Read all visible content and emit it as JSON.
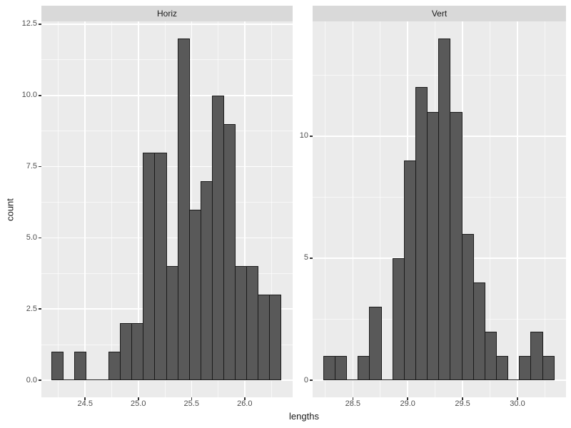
{
  "figure": {
    "x_title": "lengths",
    "y_title": "count"
  },
  "colors": {
    "panel_background": "#ebebeb",
    "strip_background": "#d9d9d9",
    "gridline": "#ffffff",
    "bar_fill": "#595959",
    "bar_stroke": "#1a1a1a",
    "axis_text": "#4d4d4d",
    "title_text": "#1a1a1a",
    "tick_mark": "#333333"
  },
  "chart_data": [
    {
      "type": "bar",
      "subtype": "histogram",
      "title": "Horiz",
      "xlabel": "lengths",
      "ylabel": "count",
      "bin_start": 24.18,
      "bin_width": 0.108,
      "counts": [
        1,
        0,
        1,
        0,
        0,
        1,
        2,
        2,
        8,
        8,
        4,
        12,
        6,
        7,
        10,
        9,
        4,
        4,
        3,
        3
      ],
      "x_range": [
        24.089,
        26.451
      ],
      "y_range": [
        -0.6,
        12.6
      ],
      "x_tick_values": [
        24.5,
        25.0,
        25.5,
        26.0
      ],
      "x_tick_labels": [
        "24.5",
        "25.0",
        "25.5",
        "26.0"
      ],
      "y_tick_values": [
        0,
        2.5,
        5,
        7.5,
        10,
        12.5
      ],
      "y_tick_labels": [
        "0.0",
        "2.5",
        "5.0",
        "7.5",
        "10.0",
        "12.5"
      ],
      "x_minor_gridlines": [
        24.25,
        24.75,
        25.25,
        25.75,
        26.25
      ],
      "y_minor_gridlines": [
        1.25,
        3.75,
        6.25,
        8.75,
        11.25
      ],
      "grid": true,
      "legend": "none"
    },
    {
      "type": "bar",
      "subtype": "histogram",
      "title": "Vert",
      "xlabel": "lengths",
      "ylabel": "count",
      "bin_start": 28.23,
      "bin_width": 0.105,
      "counts": [
        1,
        1,
        0,
        1,
        3,
        0,
        5,
        9,
        12,
        11,
        14,
        11,
        6,
        4,
        2,
        1,
        0,
        1,
        2,
        1
      ],
      "x_range": [
        28.134,
        30.442
      ],
      "y_range": [
        -0.7,
        14.7
      ],
      "x_tick_values": [
        28.5,
        29.0,
        29.5,
        30.0
      ],
      "x_tick_labels": [
        "28.5",
        "29.0",
        "29.5",
        "30.0"
      ],
      "y_tick_values": [
        0,
        5,
        10
      ],
      "y_tick_labels": [
        "0",
        "5",
        "10"
      ],
      "x_minor_gridlines": [
        28.25,
        28.75,
        29.25,
        29.75,
        30.25
      ],
      "y_minor_gridlines": [
        2.5,
        7.5,
        12.5
      ],
      "grid": true,
      "legend": "none"
    }
  ]
}
